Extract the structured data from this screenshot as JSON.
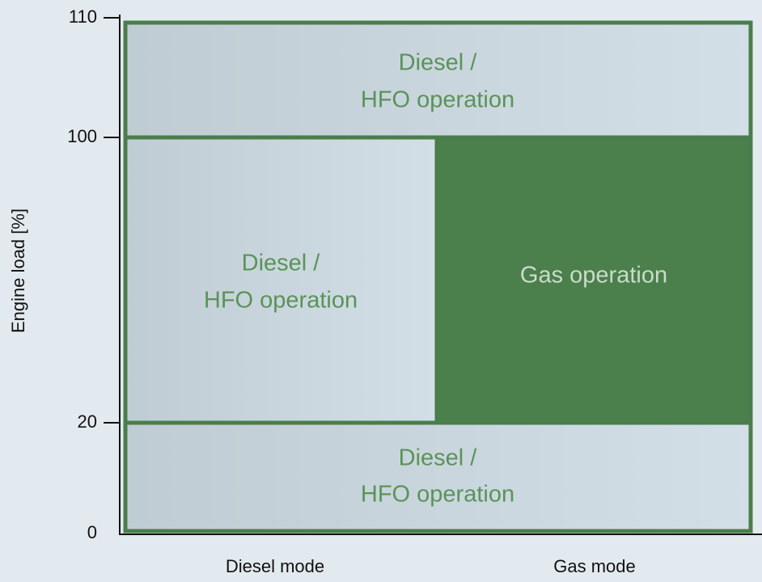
{
  "y_axis": {
    "label": "Engine load [%]",
    "ticks": [
      110,
      100,
      20,
      0
    ]
  },
  "x_axis": {
    "categories": [
      "Diesel mode",
      "Gas mode"
    ]
  },
  "regions": [
    {
      "lines": [
        "Diesel /",
        "HFO operation"
      ]
    },
    {
      "lines": [
        "Diesel /",
        "HFO operation"
      ]
    },
    {
      "lines": [
        "Gas operation"
      ]
    },
    {
      "lines": [
        "Diesel /",
        "HFO operation"
      ]
    }
  ]
}
